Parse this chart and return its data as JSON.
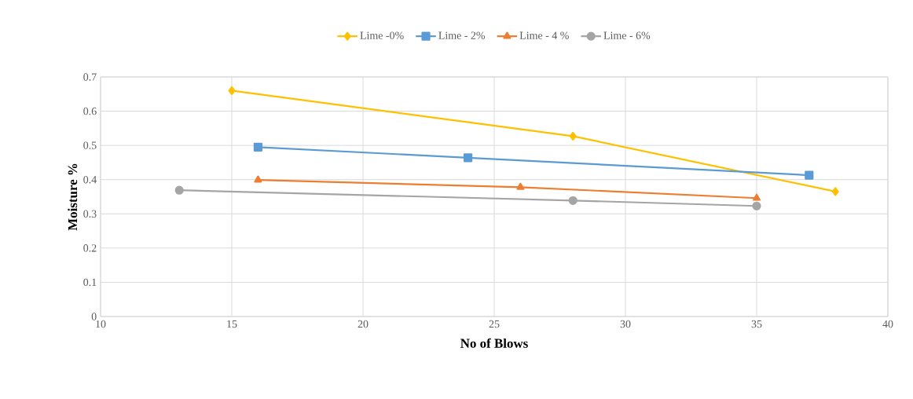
{
  "chart_data": {
    "type": "line",
    "xlabel": "No of Blows",
    "ylabel": "Moisture %",
    "xlim": [
      10,
      40
    ],
    "xticks": [
      10,
      15,
      20,
      25,
      30,
      35,
      40
    ],
    "ylim": [
      0,
      0.7
    ],
    "yticks": [
      0,
      0.1,
      0.2,
      0.3,
      0.4,
      0.5,
      0.6,
      0.7
    ],
    "grid": true,
    "legend": "top",
    "line_style": "solid",
    "series": [
      {
        "name": "Lime -0%",
        "color": "#ffc000",
        "marker": "diamond",
        "x": [
          15,
          28,
          38
        ],
        "values": [
          0.66,
          0.527,
          0.365
        ]
      },
      {
        "name": "Lime - 2%",
        "color": "#5b9bd5",
        "marker": "square",
        "x": [
          16,
          24,
          37
        ],
        "values": [
          0.495,
          0.464,
          0.413
        ]
      },
      {
        "name": "Lime - 4 %",
        "color": "#ed7d31",
        "marker": "triangle",
        "x": [
          16,
          26,
          35
        ],
        "values": [
          0.399,
          0.378,
          0.346
        ]
      },
      {
        "name": "Lime - 6%",
        "color": "#a5a5a5",
        "marker": "circle",
        "x": [
          13,
          28,
          35
        ],
        "values": [
          0.369,
          0.339,
          0.323
        ]
      }
    ]
  }
}
